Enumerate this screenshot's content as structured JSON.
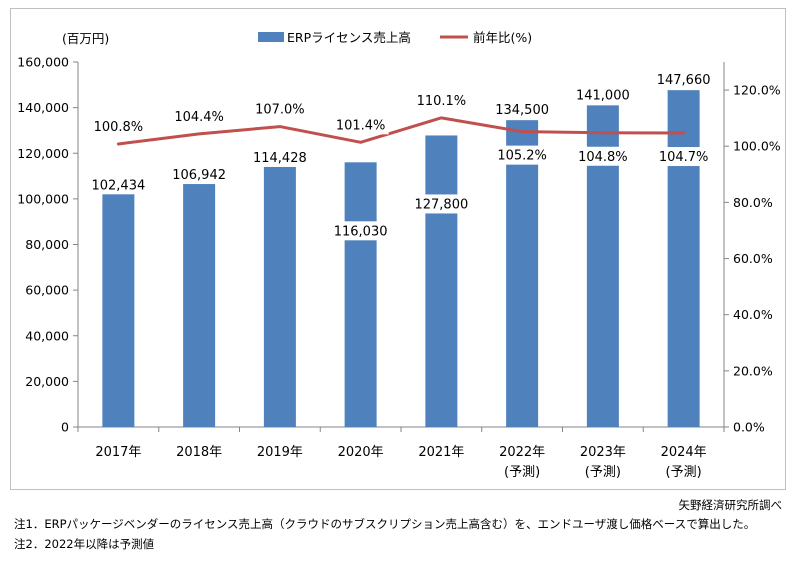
{
  "chart_data": {
    "type": "bar+line",
    "categories": [
      "2017年",
      "2018年",
      "2019年",
      "2020年",
      "2021年",
      "2022年",
      "2023年",
      "2024年"
    ],
    "category_sublabels": [
      "",
      "",
      "",
      "",
      "",
      "(予測)",
      "(予測)",
      "(予測)"
    ],
    "series": [
      {
        "name": "ERPライセンス売上高",
        "type": "bar",
        "axis": "left",
        "color": "#4f81bd",
        "values": [
          102434,
          106942,
          114428,
          116030,
          127800,
          134500,
          141000,
          147660
        ],
        "labels": [
          "102,434",
          "106,942",
          "114,428",
          "116,030",
          "127,800",
          "134,500",
          "141,000",
          "147,660"
        ]
      },
      {
        "name": "前年比(%)",
        "type": "line",
        "axis": "right",
        "color": "#c0504d",
        "values": [
          100.8,
          104.4,
          107.0,
          101.4,
          110.1,
          105.2,
          104.8,
          104.7
        ],
        "labels": [
          "100.8%",
          "104.4%",
          "107.0%",
          "101.4%",
          "110.1%",
          "105.2%",
          "104.8%",
          "104.7%"
        ]
      }
    ],
    "y_left": {
      "unit_label": "(百万円)",
      "min": 0,
      "max": 160000,
      "ticks": [
        "0",
        "20,000",
        "40,000",
        "60,000",
        "80,000",
        "100,000",
        "120,000",
        "140,000",
        "160,000"
      ]
    },
    "y_right": {
      "min": 0,
      "max": 130,
      "ticks": [
        "0.0%",
        "20.0%",
        "40.0%",
        "60.0%",
        "80.0%",
        "100.0%",
        "120.0%"
      ],
      "tick_values": [
        0,
        20,
        40,
        60,
        80,
        100,
        120
      ]
    },
    "legend_position": "top",
    "grid": false
  },
  "notes": {
    "source": "矢野経済研究所調べ",
    "note1": "注1．ERPパッケージベンダーのライセンス売上高（クラウドのサブスクリプション売上高含む）を、エンドユーザ渡し価格ベースで算出した。",
    "note2": "注2．2022年以降は予測値"
  }
}
